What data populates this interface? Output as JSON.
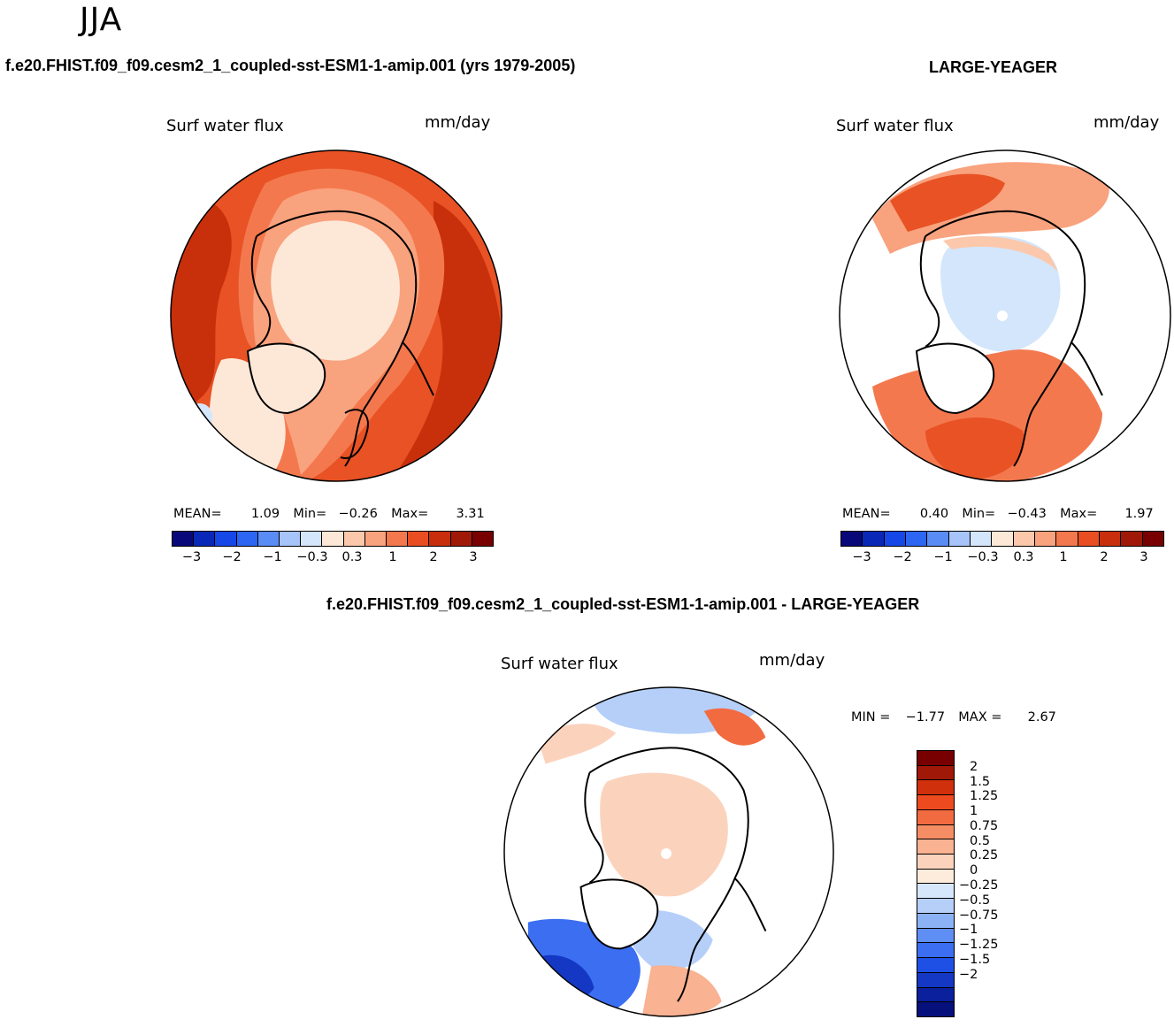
{
  "page": {
    "season": "JJA",
    "diff_title": "f.e20.FHIST.f09_f09.cesm2_1_coupled-sst-ESM1-1-amip.001 - LARGE-YEAGER"
  },
  "panels": [
    {
      "case_title": "f.e20.FHIST.f09_f09.cesm2_1_coupled-sst-ESM1-1-amip.001 (yrs 1979-2005)",
      "variable": "Surf water flux",
      "units": "mm/day",
      "stats": {
        "mean_label": "MEAN=",
        "mean": "1.09",
        "min_label": "Min=",
        "min": "−0.26",
        "max_label": "Max=",
        "max": "3.31"
      }
    },
    {
      "case_title": "LARGE-YEAGER",
      "variable": "Surf water flux",
      "units": "mm/day",
      "stats": {
        "mean_label": "MEAN=",
        "mean": "0.40",
        "min_label": "Min=",
        "min": "−0.43",
        "max_label": "Max=",
        "max": "1.97"
      }
    },
    {
      "variable": "Surf water flux",
      "units": "mm/day",
      "stats": {
        "min_label": "MIN =",
        "min": "−1.77",
        "max_label": "MAX =",
        "max": "2.67"
      }
    }
  ],
  "colorbars": {
    "main": {
      "colors": [
        "#08087a",
        "#0a28b8",
        "#1648e8",
        "#2e66f4",
        "#5a8cf6",
        "#a6c3fa",
        "#d4e6fb",
        "#fde8d8",
        "#fcc8ac",
        "#f9a27e",
        "#f4784e",
        "#e84e22",
        "#c82e0c",
        "#a01808",
        "#780000"
      ],
      "ticks": [
        "−3",
        "−2",
        "−1",
        "−0.3",
        "0.3",
        "1",
        "2",
        "3"
      ]
    },
    "diff": {
      "colors": [
        "#780000",
        "#a01808",
        "#d0300c",
        "#ee4a20",
        "#f26a40",
        "#f58d64",
        "#f9b292",
        "#fbd3bd",
        "#fdebdb",
        "#d6e7fb",
        "#b5cff9",
        "#8cb2f6",
        "#5f8ff4",
        "#3b6ef0",
        "#1f50e6",
        "#1438c4",
        "#0a209c",
        "#06107a"
      ],
      "ticks": [
        "2",
        "1.5",
        "1.25",
        "1",
        "0.75",
        "0.5",
        "0.25",
        "0",
        "−0.25",
        "−0.5",
        "−0.75",
        "−1",
        "−1.25",
        "−1.5",
        "−2"
      ]
    }
  },
  "map_palette": {
    "land": "#ffffff",
    "coast": "#000000",
    "deep_red": "#c8300c",
    "red": "#e85224",
    "orange": "#f4784e",
    "salmon": "#f9a27e",
    "peach": "#fcc8ac",
    "cream": "#fde8d8",
    "pale_blue": "#d4e6fb",
    "light_blue": "#a6c3fa",
    "blue": "#3b6ef0",
    "dark_blue": "#1438c4"
  }
}
